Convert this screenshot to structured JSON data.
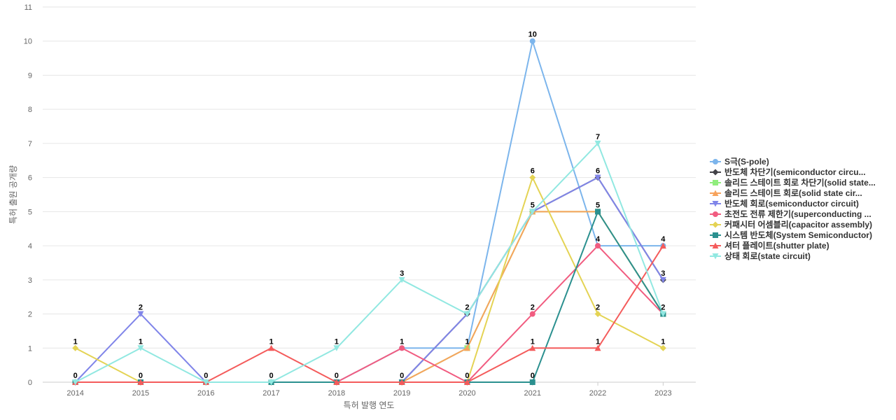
{
  "chart_data": {
    "type": "line",
    "xlabel": "특허 발행 연도",
    "ylabel": "특허 출원 공개량",
    "ylim": [
      0,
      11
    ],
    "yticks": [
      0,
      1,
      2,
      3,
      4,
      5,
      6,
      7,
      8,
      9,
      10,
      11
    ],
    "grid": true,
    "legend_position": "right",
    "categories": [
      "2014",
      "2015",
      "2016",
      "2017",
      "2018",
      "2019",
      "2020",
      "2021",
      "2022",
      "2023"
    ],
    "series": [
      {
        "name": "S극(S-pole)",
        "color": "#7cb5ec",
        "marker": "circle",
        "values": [
          0,
          0,
          0,
          0,
          0,
          1,
          1,
          10,
          4,
          4
        ]
      },
      {
        "name": "반도체 차단기(semiconductor circu...",
        "color": "#434348",
        "marker": "diamond",
        "values": [
          0,
          0,
          0,
          0,
          0,
          0,
          2,
          5,
          6,
          3
        ]
      },
      {
        "name": "솔리드 스테이트 회로 차단기(solid state...",
        "color": "#90ed7d",
        "marker": "square",
        "values": [
          0,
          0,
          0,
          0,
          0,
          0,
          1,
          5,
          5,
          2
        ]
      },
      {
        "name": "솔리드 스테이트 회로(solid state cir...",
        "color": "#f7a35c",
        "marker": "triangle",
        "values": [
          0,
          0,
          0,
          0,
          0,
          0,
          1,
          5,
          5,
          2
        ]
      },
      {
        "name": "반도체 회로(semiconductor circuit)",
        "color": "#8085e9",
        "marker": "triangle-down",
        "values": [
          0,
          2,
          0,
          0,
          0,
          0,
          2,
          5,
          6,
          3
        ]
      },
      {
        "name": "초전도 전류 제한기(superconducting ...",
        "color": "#f15c80",
        "marker": "circle",
        "values": [
          0,
          0,
          0,
          0,
          0,
          1,
          0,
          2,
          4,
          2
        ]
      },
      {
        "name": "커패시터 어셈블리(capacitor assembly)",
        "color": "#e4d354",
        "marker": "diamond",
        "values": [
          1,
          0,
          0,
          0,
          0,
          0,
          0,
          6,
          2,
          1
        ]
      },
      {
        "name": "시스템 반도체(System Semiconductor)",
        "color": "#2b908f",
        "marker": "square",
        "values": [
          0,
          0,
          0,
          0,
          0,
          0,
          0,
          0,
          5,
          2
        ]
      },
      {
        "name": "셔터 플레이트(shutter plate)",
        "color": "#f45b5b",
        "marker": "triangle",
        "values": [
          0,
          0,
          0,
          1,
          0,
          0,
          0,
          1,
          1,
          4
        ]
      },
      {
        "name": "상태 회로(state circuit)",
        "color": "#91e8e1",
        "marker": "triangle-down",
        "values": [
          0,
          1,
          0,
          0,
          1,
          3,
          2,
          5,
          7,
          2
        ]
      }
    ],
    "data_labels": [
      {
        "x": "2014",
        "text": "1",
        "value": 1
      },
      {
        "x": "2014",
        "text": "0",
        "value": 0
      },
      {
        "x": "2015",
        "text": "2",
        "value": 2
      },
      {
        "x": "2015",
        "text": "1",
        "value": 1
      },
      {
        "x": "2015",
        "text": "0",
        "value": 0
      },
      {
        "x": "2016",
        "text": "0",
        "value": 0
      },
      {
        "x": "2017",
        "text": "1",
        "value": 1
      },
      {
        "x": "2017",
        "text": "0",
        "value": 0
      },
      {
        "x": "2018",
        "text": "1",
        "value": 1
      },
      {
        "x": "2018",
        "text": "0",
        "value": 0
      },
      {
        "x": "2019",
        "text": "3",
        "value": 3
      },
      {
        "x": "2019",
        "text": "1",
        "value": 1
      },
      {
        "x": "2019",
        "text": "0",
        "value": 0
      },
      {
        "x": "2020",
        "text": "2",
        "value": 2
      },
      {
        "x": "2020",
        "text": "1",
        "value": 1
      },
      {
        "x": "2020",
        "text": "0",
        "value": 0
      },
      {
        "x": "2021",
        "text": "10",
        "value": 10
      },
      {
        "x": "2021",
        "text": "6",
        "value": 6
      },
      {
        "x": "2021",
        "text": "5",
        "value": 5
      },
      {
        "x": "2021",
        "text": "2",
        "value": 2
      },
      {
        "x": "2021",
        "text": "1",
        "value": 1
      },
      {
        "x": "2021",
        "text": "0",
        "value": 0
      },
      {
        "x": "2022",
        "text": "7",
        "value": 7
      },
      {
        "x": "2022",
        "text": "6",
        "value": 6
      },
      {
        "x": "2022",
        "text": "5",
        "value": 5
      },
      {
        "x": "2022",
        "text": "4",
        "value": 4
      },
      {
        "x": "2022",
        "text": "2",
        "value": 2
      },
      {
        "x": "2022",
        "text": "1",
        "value": 1
      },
      {
        "x": "2023",
        "text": "4",
        "value": 4
      },
      {
        "x": "2023",
        "text": "3",
        "value": 3
      },
      {
        "x": "2023",
        "text": "2",
        "value": 2
      },
      {
        "x": "2023",
        "text": "1",
        "value": 1
      }
    ]
  }
}
